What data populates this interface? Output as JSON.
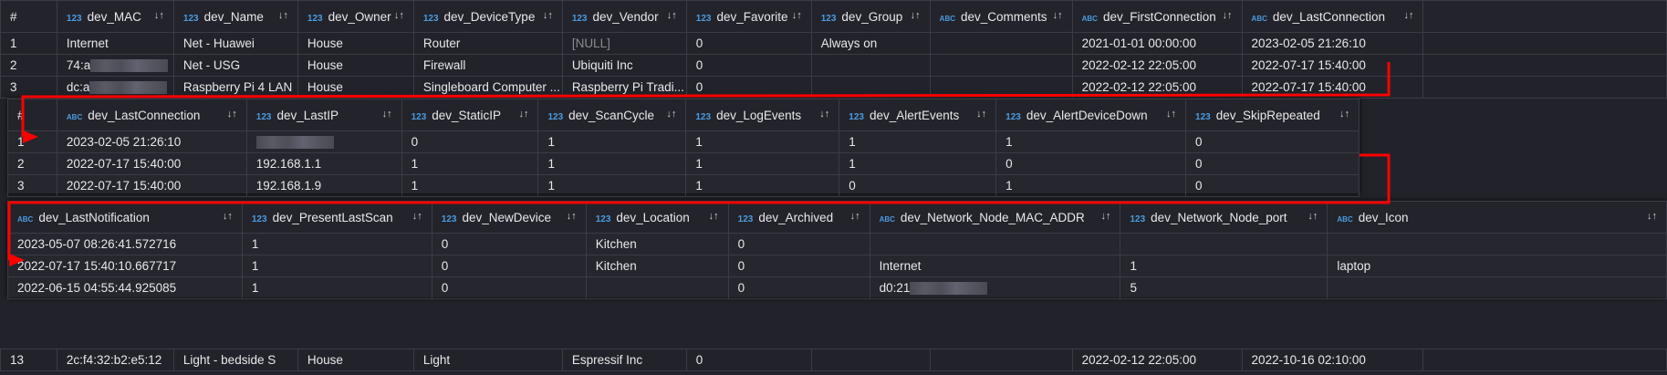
{
  "accent_color": "#4a9be0",
  "arrow_color": "#ff0000",
  "sort_icon": "sort-arrows-icon",
  "tables": [
    {
      "columns": [
        {
          "type": "",
          "label": "#"
        },
        {
          "type": "123",
          "label": "dev_MAC"
        },
        {
          "type": "123",
          "label": "dev_Name"
        },
        {
          "type": "123",
          "label": "dev_Owner"
        },
        {
          "type": "123",
          "label": "dev_DeviceType"
        },
        {
          "type": "123",
          "label": "dev_Vendor"
        },
        {
          "type": "123",
          "label": "dev_Favorite"
        },
        {
          "type": "123",
          "label": "dev_Group"
        },
        {
          "type": "ABC",
          "label": "dev_Comments"
        },
        {
          "type": "ABC",
          "label": "dev_FirstConnection"
        },
        {
          "type": "ABC",
          "label": "dev_LastConnection"
        },
        {
          "type": "",
          "label": ""
        }
      ],
      "rows": [
        [
          "1",
          "Internet",
          "Net - Huawei",
          "House",
          "Router",
          "[NULL]",
          "0",
          "Always on",
          "",
          "2021-01-01 00:00:00",
          "2023-02-05 21:26:10",
          ""
        ],
        [
          "2",
          "74:a",
          "Net - USG",
          "House",
          "Firewall",
          "Ubiquiti Inc",
          "0",
          "",
          "",
          "2022-02-12 22:05:00",
          "2022-07-17 15:40:00",
          ""
        ],
        [
          "3",
          "dc:a",
          "Raspberry Pi 4 LAN",
          "House",
          "Singleboard Computer ...",
          "Raspberry Pi Tradi...",
          "0",
          "",
          "",
          "2022-02-12 22:05:00",
          "2022-07-17 15:40:00",
          ""
        ]
      ],
      "blurred": [
        [
          1,
          1
        ],
        [
          2,
          1
        ]
      ],
      "extra_row": [
        "13",
        "2c:f4:32:b2:e5:12",
        "Light - bedside S",
        "House",
        "Light",
        "Espressif Inc",
        "0",
        "",
        "",
        "2022-02-12 22:05:00",
        "2022-10-16 02:10:00",
        ""
      ]
    },
    {
      "columns": [
        {
          "type": "",
          "label": "#"
        },
        {
          "type": "ABC",
          "label": "dev_LastConnection"
        },
        {
          "type": "123",
          "label": "dev_LastIP"
        },
        {
          "type": "123",
          "label": "dev_StaticIP"
        },
        {
          "type": "123",
          "label": "dev_ScanCycle"
        },
        {
          "type": "123",
          "label": "dev_LogEvents"
        },
        {
          "type": "123",
          "label": "dev_AlertEvents"
        },
        {
          "type": "123",
          "label": "dev_AlertDeviceDown"
        },
        {
          "type": "123",
          "label": "dev_SkipRepeated"
        }
      ],
      "rows": [
        [
          "1",
          "2023-02-05 21:26:10",
          "",
          "0",
          "1",
          "1",
          "1",
          "1",
          "0"
        ],
        [
          "2",
          "2022-07-17 15:40:00",
          "192.168.1.1",
          "1",
          "1",
          "1",
          "1",
          "0",
          "0"
        ],
        [
          "3",
          "2022-07-17 15:40:00",
          "192.168.1.9",
          "1",
          "1",
          "1",
          "0",
          "1",
          "0"
        ]
      ],
      "blurred": [
        [
          0,
          2
        ]
      ]
    },
    {
      "columns": [
        {
          "type": "ABC",
          "label": "dev_LastNotification"
        },
        {
          "type": "123",
          "label": "dev_PresentLastScan"
        },
        {
          "type": "123",
          "label": "dev_NewDevice"
        },
        {
          "type": "123",
          "label": "dev_Location"
        },
        {
          "type": "123",
          "label": "dev_Archived"
        },
        {
          "type": "ABC",
          "label": "dev_Network_Node_MAC_ADDR"
        },
        {
          "type": "123",
          "label": "dev_Network_Node_port"
        },
        {
          "type": "ABC",
          "label": "dev_Icon"
        }
      ],
      "rows": [
        [
          "2023-05-07 08:26:41.572716",
          "1",
          "0",
          "Kitchen",
          "0",
          "",
          "",
          ""
        ],
        [
          "2022-07-17 15:40:10.667717",
          "1",
          "0",
          "Kitchen",
          "0",
          "Internet",
          "1",
          "laptop"
        ],
        [
          "2022-06-15 04:55:44.925085",
          "1",
          "0",
          "",
          "0",
          "d0:21",
          "5",
          ""
        ]
      ],
      "blurred": [
        [
          2,
          5
        ]
      ]
    }
  ]
}
